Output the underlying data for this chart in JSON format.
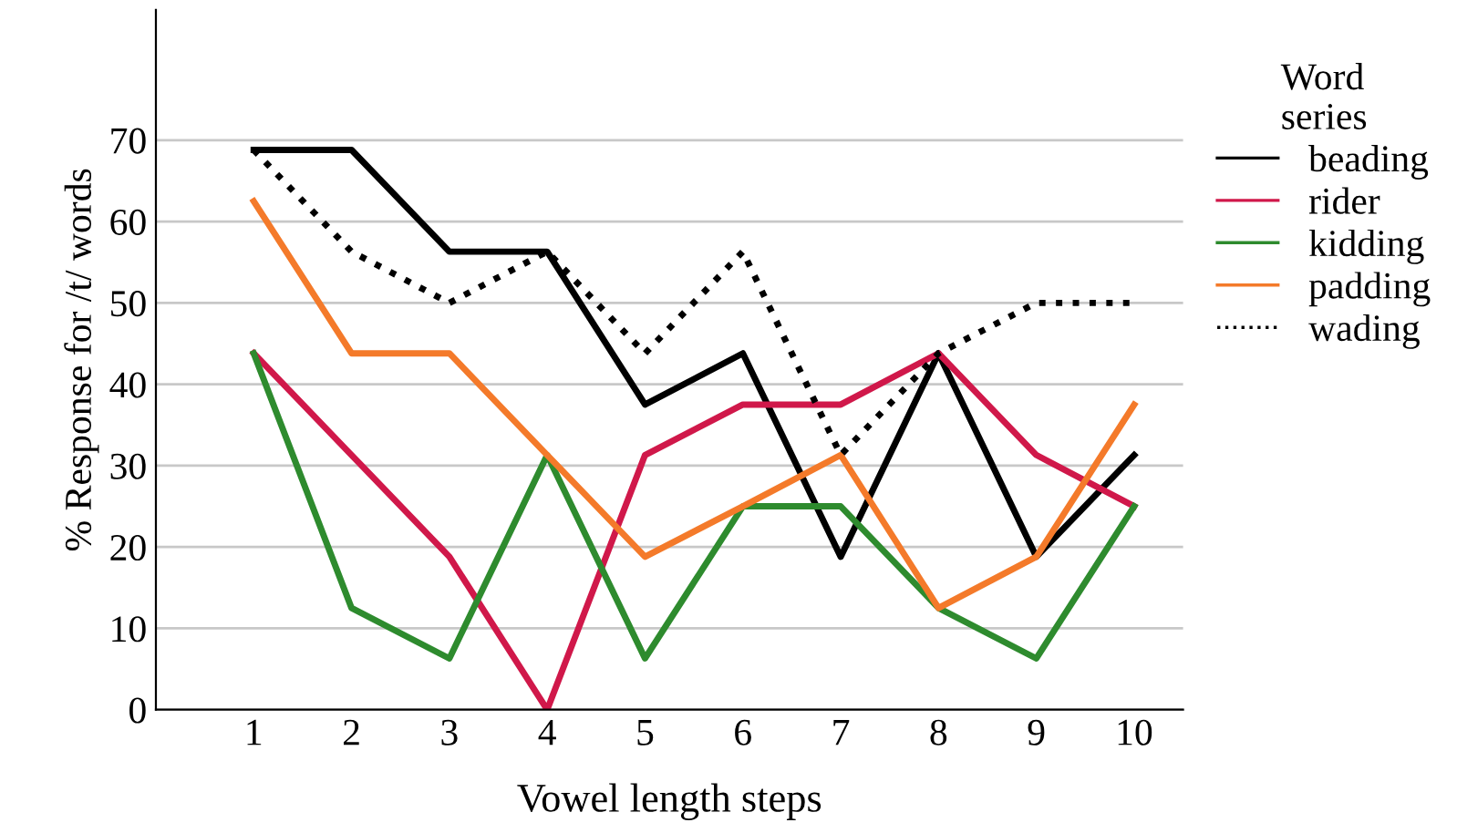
{
  "chart_data": {
    "type": "line",
    "xlabel": "Vowel length steps",
    "ylabel": "% Response for /t/ words",
    "legend_title": "Word\nseries",
    "x": [
      1,
      2,
      3,
      4,
      5,
      6,
      7,
      8,
      9,
      10
    ],
    "series": [
      {
        "name": "beading",
        "color": "#000000",
        "values": [
          68.8,
          68.8,
          56.3,
          56.3,
          37.5,
          43.8,
          18.8,
          43.8,
          18.8,
          31.3
        ]
      },
      {
        "name": "rider",
        "color": "#d0184a",
        "values": [
          43.8,
          31.3,
          18.8,
          0,
          31.3,
          37.5,
          37.5,
          43.8,
          31.3,
          25
        ]
      },
      {
        "name": "kidding",
        "color": "#2e8b2e",
        "values": [
          43.8,
          12.5,
          6.3,
          31.3,
          6.3,
          25,
          25,
          12.5,
          6.3,
          25
        ]
      },
      {
        "name": "padding",
        "color": "#f47a2a",
        "values": [
          62.5,
          43.8,
          43.8,
          31.3,
          18.8,
          25,
          31.3,
          12.5,
          18.8,
          37.5
        ]
      },
      {
        "name": "wading",
        "color": "#000000",
        "line_style": "dotted",
        "values": [
          68.8,
          56.3,
          50,
          56.3,
          43.8,
          56.3,
          31.3,
          43.8,
          50,
          50
        ]
      }
    ],
    "xlim": [
      0,
      10.5
    ],
    "xticks": [
      1,
      2,
      3,
      4,
      5,
      6,
      7,
      8,
      9,
      10
    ],
    "ylim": [
      0,
      86
    ],
    "yticks": [
      0,
      10,
      20,
      30,
      40,
      50,
      60,
      70
    ],
    "grid": "y",
    "legend": "right",
    "line_style": "solid"
  }
}
